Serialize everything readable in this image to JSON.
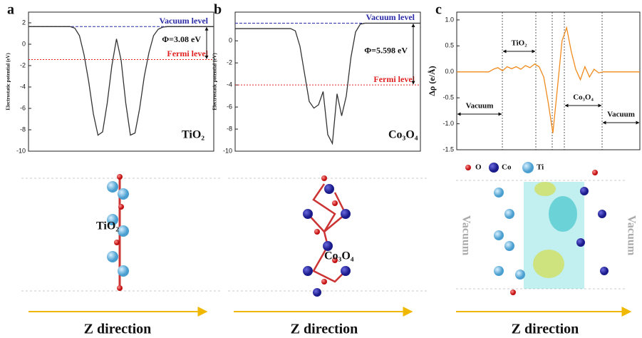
{
  "chart_data": [
    {
      "type": "line",
      "panel": "a",
      "ylabel": "Electrostatic potential (eV)",
      "ylim": [
        -10,
        3
      ],
      "yticks": [
        -10,
        -8,
        -6,
        -4,
        -2,
        0,
        2
      ],
      "series": [
        {
          "color": "#333333",
          "values": [
            1.65,
            1.65,
            1.65,
            1.65,
            1.65,
            1.65,
            1.65,
            1.65,
            1.65,
            1.65,
            1.5,
            0.8,
            -1,
            -3.5,
            -6.5,
            -8.5,
            -8.2,
            -5.5,
            -2,
            0.5,
            -1.5,
            -5.5,
            -8.5,
            -8.3,
            -6,
            -3,
            -0.8,
            0.8,
            1.4,
            1.6,
            1.65,
            1.65,
            1.65,
            1.65,
            1.65,
            1.65,
            1.65,
            1.65,
            1.65,
            1.65,
            1.65
          ]
        }
      ],
      "levels": [
        {
          "label": "Vacuum level",
          "value": 1.65,
          "color": "#2b2ba8"
        },
        {
          "label": "Fermi level",
          "value": -1.43,
          "color": "#e02020"
        }
      ],
      "work_function": "Φ=3.08 eV",
      "material": "TiO₂"
    },
    {
      "type": "line",
      "panel": "b",
      "ylabel": "Electrostatic potential (eV)",
      "ylim": [
        -10,
        2.6
      ],
      "yticks": [
        -10,
        -8,
        -6,
        -4,
        -2,
        0
      ],
      "series": [
        {
          "color": "#333333",
          "values": [
            1.1,
            1.1,
            1.1,
            1.1,
            1.1,
            1.1,
            1.1,
            1.1,
            1.1,
            1.1,
            1.1,
            1.1,
            1.1,
            0.9,
            -0.5,
            -3,
            -5.5,
            -6.1,
            -5.8,
            -4.6,
            -8.5,
            -9.3,
            -4.8,
            -6.8,
            -5,
            -1.5,
            0.8,
            1.5,
            1.6,
            1.6,
            1.6,
            1.6,
            1.6,
            1.6,
            1.6,
            1.6,
            1.6,
            1.6,
            1.6,
            1.6,
            1.6
          ]
        }
      ],
      "levels": [
        {
          "label": "Vacuum level",
          "value": 1.6,
          "color": "#2b2ba8"
        },
        {
          "label": "Fermi level",
          "value": -4.0,
          "color": "#e02020"
        }
      ],
      "work_function": "Φ=5.598 eV",
      "material": "Co₃O₄"
    },
    {
      "type": "line",
      "panel": "c",
      "ylabel": "Δρ (e/Å)",
      "ylim": [
        -1.5,
        1.15
      ],
      "yticks": [
        {
          "value": -1.5,
          "label": "-1.5"
        },
        {
          "value": -1,
          "label": "-1.0"
        },
        {
          "value": -0.5,
          "label": "-0.5"
        },
        {
          "value": 0,
          "label": "0.0"
        },
        {
          "value": 0.5,
          "label": "0.5"
        },
        {
          "value": 1,
          "label": "1.0"
        }
      ],
      "series": [
        {
          "color": "#f08a1c",
          "values": [
            0,
            0,
            0,
            0,
            0,
            0,
            0,
            0,
            0.05,
            0.08,
            0.02,
            0.1,
            0.06,
            0.1,
            0.05,
            0.12,
            0.08,
            0.15,
            0.1,
            -0.1,
            -0.6,
            -1.18,
            -0.3,
            0.6,
            0.85,
            0.4,
            0.05,
            -0.15,
            0.1,
            -0.1,
            0.05,
            -0.02,
            0,
            0,
            0,
            0,
            0,
            0,
            0,
            0,
            0
          ]
        }
      ],
      "regions": [
        "Vacuum",
        "TiO₂",
        "Co₃O₄",
        "Vacuum"
      ]
    }
  ],
  "structures": [
    {
      "label": "TiO₂",
      "direction": "Z direction"
    },
    {
      "label": "Co₃O₄",
      "direction": "Z direction"
    },
    {
      "side_labels": [
        "Vacuum",
        "Vacuum"
      ],
      "direction": "Z direction"
    }
  ],
  "atom_legend": [
    "O",
    "Co",
    "Ti"
  ]
}
